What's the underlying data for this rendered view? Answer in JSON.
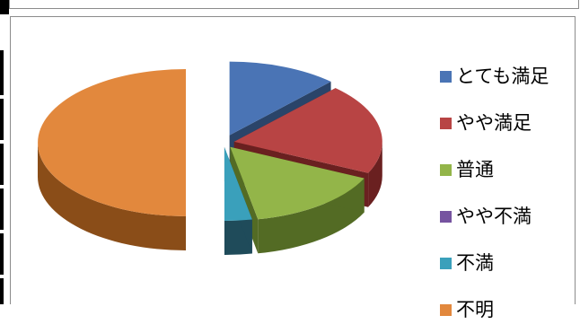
{
  "chart_data": {
    "type": "pie",
    "style": "3d-exploded",
    "title": "",
    "legend_position": "right",
    "categories": [
      "とても満足",
      "やや満足",
      "普通",
      "やや不満",
      "不満",
      "不明"
    ],
    "values": [
      12,
      20,
      15,
      0,
      3,
      50
    ],
    "colors": [
      "#4a74b5",
      "#b84444",
      "#93b549",
      "#7653a0",
      "#3aa0bb",
      "#e2883d"
    ],
    "side_colors": [
      "#2a4469",
      "#6a2020",
      "#536b24",
      "#412c59",
      "#1f4b5a",
      "#8a4d18"
    ]
  }
}
